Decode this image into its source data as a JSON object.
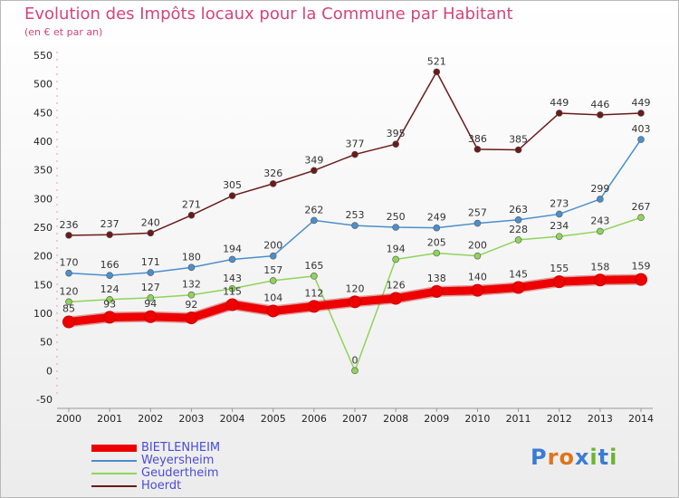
{
  "header": {
    "title": "Evolution des Impôts locaux pour la Commune par Habitant",
    "subtitle": "(en € et par an)"
  },
  "logo": {
    "text": "Proxiti",
    "colors": [
      "#3a7bd5",
      "#e0731c",
      "#e0731c",
      "#3a7bd5",
      "#6cb52d",
      "#3a7bd5",
      "#6cb52d"
    ]
  },
  "chart_data": {
    "type": "line",
    "title": "Evolution des Impôts locaux pour la Commune par Habitant",
    "subtitle": "(en € et par an)",
    "xlabel": "",
    "ylabel": "",
    "categories": [
      "2000",
      "2001",
      "2002",
      "2003",
      "2004",
      "2005",
      "2006",
      "2007",
      "2008",
      "2009",
      "2010",
      "2011",
      "2012",
      "2013",
      "2014"
    ],
    "ylim": [
      -50,
      550
    ],
    "yticks": [
      -50,
      0,
      50,
      100,
      150,
      200,
      250,
      300,
      350,
      400,
      450,
      500,
      550
    ],
    "grid": false,
    "legend_position": "bottom-left",
    "series": [
      {
        "name": "Hoerdt",
        "color": "#6b1a1a",
        "values": [
          236,
          237,
          240,
          271,
          305,
          326,
          349,
          377,
          395,
          521,
          386,
          385,
          449,
          446,
          449
        ]
      },
      {
        "name": "Weyersheim",
        "color": "#4a8fcc",
        "values": [
          170,
          166,
          171,
          180,
          194,
          200,
          262,
          253,
          250,
          249,
          257,
          263,
          273,
          299,
          403
        ]
      },
      {
        "name": "Geudertheim",
        "color": "#8fd45a",
        "values": [
          120,
          124,
          127,
          132,
          143,
          157,
          165,
          0,
          194,
          205,
          200,
          228,
          234,
          243,
          267
        ]
      },
      {
        "name": "BIETLENHEIM",
        "color": "#ee0000",
        "values": [
          85,
          93,
          94,
          92,
          115,
          104,
          112,
          120,
          126,
          138,
          140,
          145,
          155,
          158,
          159
        ]
      }
    ],
    "legend_order": [
      "BIETLENHEIM",
      "Weyersheim",
      "Geudertheim",
      "Hoerdt"
    ]
  }
}
